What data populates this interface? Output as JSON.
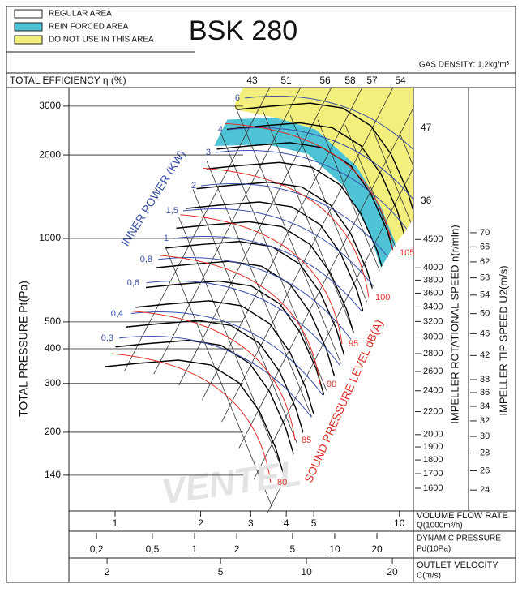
{
  "chart_data": {
    "type": "fan-performance",
    "title": "BSK 280",
    "subtitle": "GAS DENSITY: 1,2kg/m³",
    "legend": [
      {
        "name": "REGULAR AREA",
        "color": "#ffffff"
      },
      {
        "name": "REIN FORCED AREA",
        "color": "#4fc3d6"
      },
      {
        "name": "DO NOT USE IN THIS AREA",
        "color": "#f2ef7c"
      }
    ],
    "efficiency_title": "TOTAL EFFICIENCY η (%)",
    "efficiency_labels": [
      43,
      51,
      56,
      58,
      57,
      54,
      47,
      36
    ],
    "ylabel": "TOTAL PRESSURE Pt(Pa)",
    "log_scale": true,
    "ylim": [
      104,
      3500
    ],
    "yticks": [
      140,
      200,
      300,
      400,
      500,
      1000,
      2000,
      3000
    ],
    "y2label": "IMPELLER ROTATIONAL SPEED n(r/mIn)",
    "y2lim": [
      1456,
      8460
    ],
    "y2ticks": [
      1600,
      1700,
      1800,
      1900,
      2000,
      2200,
      2400,
      2600,
      2800,
      3000,
      3200,
      3400,
      3600,
      3800,
      4000,
      4500
    ],
    "y3label": "IMPELLER TIP SPEED U2(m/s)",
    "y3lim": [
      22,
      128
    ],
    "y3ticks": [
      24,
      26,
      28,
      30,
      32,
      34,
      36,
      38,
      42,
      46,
      50,
      54,
      58,
      62,
      66,
      70
    ],
    "xlabel": [
      "VOLUME FLOW RATE",
      "Q(1000m³/h)"
    ],
    "xlim": [
      0.688,
      11.2
    ],
    "xticks": [
      1,
      2,
      3,
      4,
      5,
      10
    ],
    "x2label": [
      "DYNAMIC PRESSURE",
      "Pd(10Pa)"
    ],
    "x2lim": [
      0.127,
      36.4
    ],
    "x2ticks": [
      {
        "value": 0.2,
        "label": "0,2"
      },
      {
        "value": 0.5,
        "label": "0,5"
      },
      1,
      2,
      5,
      10,
      20
    ],
    "x3label": [
      "OUTLET VELOCITY",
      "C(m/s)"
    ],
    "x3lim": [
      1.47,
      23.7
    ],
    "x3ticks": [
      2,
      5,
      10,
      20
    ],
    "power_title": "INNER POWER (KW)",
    "power_labels": [
      "6",
      "4",
      "3",
      "2",
      "1,5",
      "1",
      "0,8",
      "0,6",
      "0,4",
      "0,3"
    ],
    "noise_title": "SOUND PRESSURE LEVEL dB(A)",
    "noise_labels": [
      105,
      100,
      95,
      90,
      85,
      80
    ],
    "watermark": "VENTEL"
  }
}
